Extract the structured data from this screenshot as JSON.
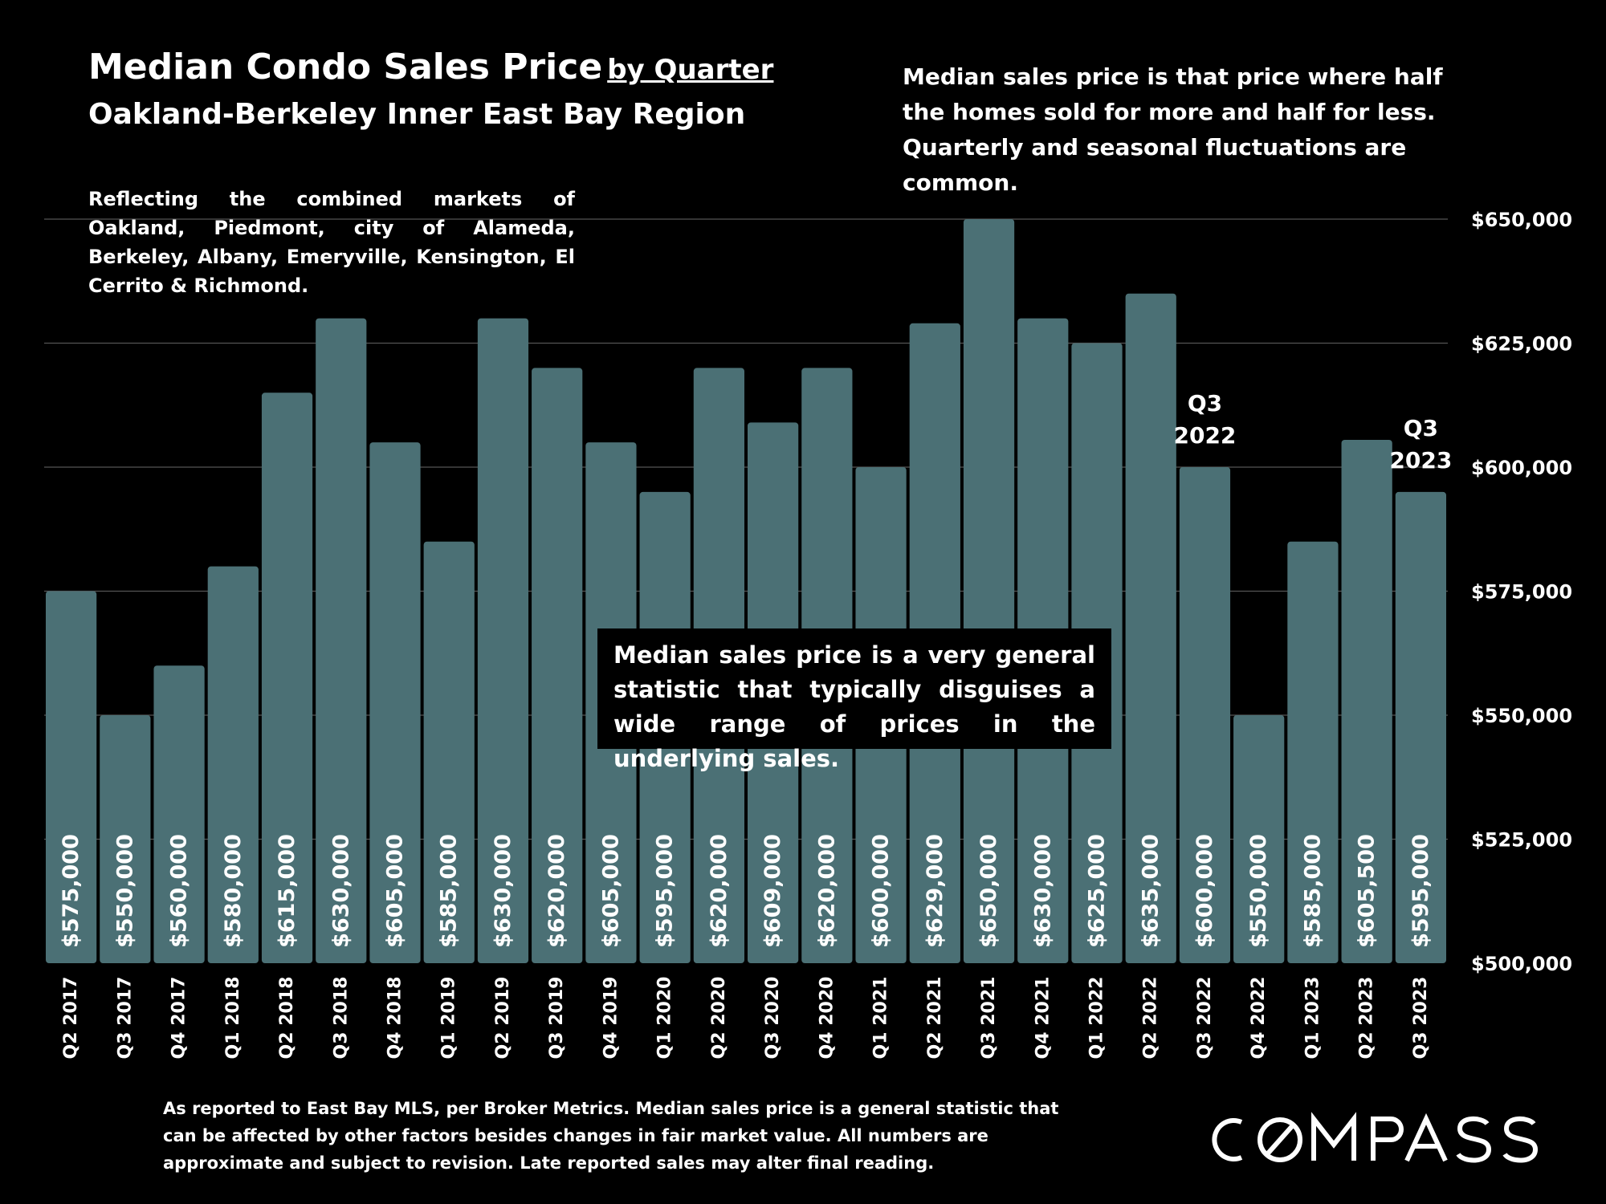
{
  "title": "Median Condo Sales Price",
  "title_suffix": "by Quarter",
  "subtitle": "Oakland-Berkeley Inner East Bay Region",
  "note_top": "Median sales price is that price where half the homes sold for more and half for less. Quarterly and seasonal fluctuations are common.",
  "note_markets": "Reflecting the combined markets of Oakland, Piedmont, city of Alameda, Berkeley, Albany, Emeryville, Kensington, El Cerrito & Richmond.",
  "note_box": "Median sales price is a very general statistic that typically disguises a wide range of prices in the underlying sales.",
  "footnote": "As reported to East Bay MLS, per Broker Metrics. Median sales price is a general statistic that can be affected by other factors besides changes in fair market value. All numbers are approximate and subject to revision. Late reported sales may alter final reading.",
  "logo_text": "COMPASS",
  "colors": {
    "background": "#000000",
    "bar": "#4b7075",
    "gridline": "#555555",
    "text": "#ffffff"
  },
  "chart_data": {
    "type": "bar",
    "categories": [
      "Q2 2017",
      "Q3 2017",
      "Q4 2017",
      "Q1 2018",
      "Q2 2018",
      "Q3 2018",
      "Q4 2018",
      "Q1 2019",
      "Q2 2019",
      "Q3 2019",
      "Q4 2019",
      "Q1 2020",
      "Q2 2020",
      "Q3 2020",
      "Q4 2020",
      "Q1 2021",
      "Q2 2021",
      "Q3 2021",
      "Q4 2021",
      "Q1 2022",
      "Q2 2022",
      "Q3 2022",
      "Q4 2022",
      "Q1 2023",
      "Q2 2023",
      "Q3 2023"
    ],
    "values": [
      575000,
      550000,
      560000,
      580000,
      615000,
      630000,
      605000,
      585000,
      630000,
      620000,
      605000,
      595000,
      620000,
      609000,
      620000,
      600000,
      629000,
      650000,
      630000,
      625000,
      635000,
      600000,
      550000,
      585000,
      605500,
      595000
    ],
    "value_labels": [
      "$575,000",
      "$550,000",
      "$560,000",
      "$580,000",
      "$615,000",
      "$630,000",
      "$605,000",
      "$585,000",
      "$630,000",
      "$620,000",
      "$605,000",
      "$595,000",
      "$620,000",
      "$609,000",
      "$620,000",
      "$600,000",
      "$629,000",
      "$650,000",
      "$630,000",
      "$625,000",
      "$635,000",
      "$600,000",
      "$550,000",
      "$585,000",
      "$605,500",
      "$595,000"
    ],
    "ylim": [
      500000,
      650000
    ],
    "y_ticks": [
      500000,
      525000,
      550000,
      575000,
      600000,
      625000,
      650000
    ],
    "y_tick_labels": [
      "$500,000",
      "$525,000",
      "$550,000",
      "$575,000",
      "$600,000",
      "$625,000",
      "$650,000"
    ],
    "y_axis_side": "right",
    "grid": true,
    "annotations": [
      {
        "category": "Q3 2022",
        "lines": [
          "Q3",
          "2022"
        ]
      },
      {
        "category": "Q3 2023",
        "lines": [
          "Q3",
          "2023"
        ]
      }
    ]
  }
}
